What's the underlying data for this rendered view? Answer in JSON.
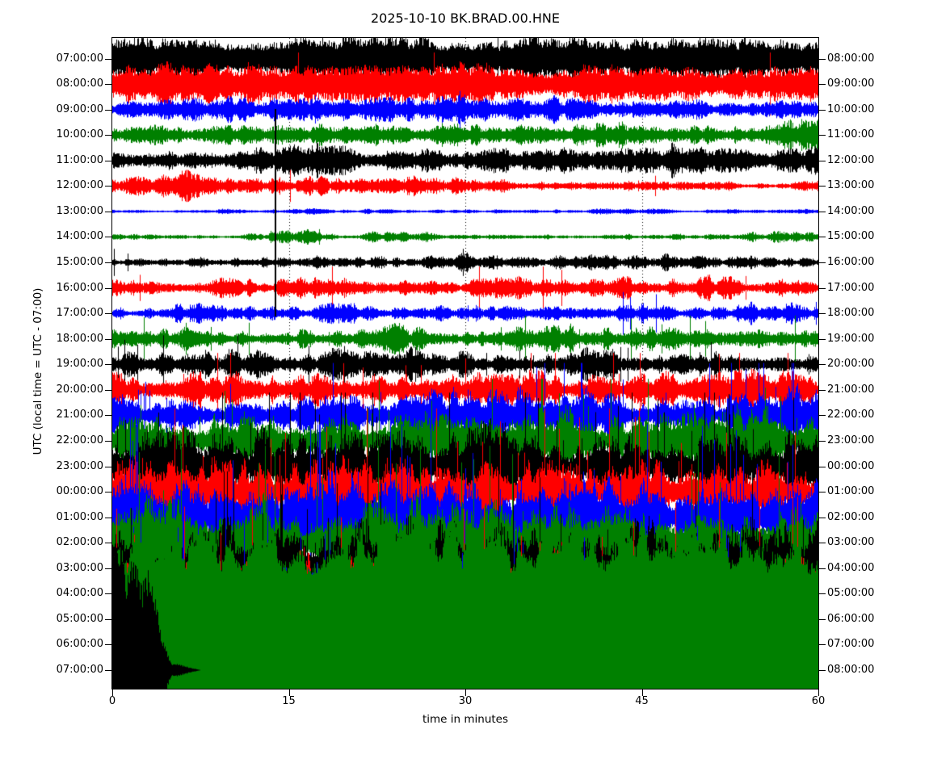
{
  "figure": {
    "title": "2025-10-10 BK.BRAD.00.HNE",
    "xlabel": "time in minutes",
    "ylabel": "UTC (local time = UTC - 07:00)"
  },
  "chart_data": {
    "type": "line",
    "subtype": "seismogram-dayplot",
    "title": "2025-10-10 BK.BRAD.00.HNE",
    "station": "BK.BRAD.00.HNE",
    "date": "2025-10-10",
    "xlabel": "time in minutes",
    "ylabel": "UTC (local time = UTC - 07:00)",
    "x_axis": {
      "range_minutes": [
        0,
        60
      ],
      "ticks": [
        0,
        15,
        30,
        45,
        60
      ]
    },
    "grid": {
      "vertical_dotted_at_minutes": [
        15,
        30,
        45
      ],
      "color": "#000000"
    },
    "trace_color_cycle": [
      "#000000",
      "#ff0000",
      "#0000ff",
      "#008000"
    ],
    "annotations": [
      {
        "type": "vertical-glitch-line",
        "minute": 13.9,
        "color": "#000000"
      }
    ],
    "rows": [
      {
        "left": "07:00:00",
        "right": "08:00:00",
        "color": "#000000",
        "amp": 28,
        "floor": 0.55,
        "flat": 0.6,
        "cap": 1.5,
        "spikes": 0.003,
        "seed": 11,
        "env": [
          1,
          1.05,
          0.95,
          1,
          1.1,
          1,
          0.95,
          1.05,
          1,
          0.9,
          1,
          1.05,
          1
        ]
      },
      {
        "left": "08:00:00",
        "right": "09:00:00",
        "color": "#ff0000",
        "amp": 26,
        "floor": 0.5,
        "flat": 0.6,
        "cap": 1.5,
        "spikes": 0.004,
        "seed": 23,
        "env": [
          1,
          1.1,
          0.9,
          1,
          0.95,
          1.05,
          1,
          0.9,
          1,
          1.05,
          0.95,
          1,
          1
        ]
      },
      {
        "left": "09:00:00",
        "right": "10:00:00",
        "color": "#0000ff",
        "amp": 16,
        "floor": 0.45,
        "flat": 0.8,
        "seed": 35,
        "env": [
          0.7,
          0.9,
          1.15,
          0.95,
          0.85,
          1.1,
          1.2,
          1,
          0.9,
          1,
          0.9,
          0.8,
          0.9
        ]
      },
      {
        "left": "10:00:00",
        "right": "11:00:00",
        "color": "#008000",
        "amp": 16,
        "floor": 0.45,
        "flat": 0.8,
        "seed": 47,
        "env": [
          0.9,
          1,
          0.8,
          1,
          1.15,
          0.9,
          1,
          1,
          0.9,
          1,
          1,
          0.9,
          1.25
        ]
      },
      {
        "left": "11:00:00",
        "right": "12:00:00",
        "color": "#000000",
        "amp": 17,
        "floor": 0.45,
        "flat": 0.8,
        "seed": 59,
        "env": [
          0.7,
          0.8,
          0.9,
          1.2,
          1.05,
          0.9,
          1,
          0.95,
          1.25,
          1.1,
          1.35,
          1,
          1.45
        ]
      },
      {
        "left": "12:00:00",
        "right": "13:00:00",
        "color": "#ff0000",
        "amp": 11,
        "floor": 0.45,
        "cap": 1.8,
        "spikes": 0.002,
        "seed": 71,
        "env": [
          1.4,
          1.6,
          1.3,
          1.2,
          1.1,
          1,
          0.9,
          0.7,
          0.6,
          0.55,
          0.5,
          0.5,
          0.5
        ]
      },
      {
        "left": "13:00:00",
        "right": "14:00:00",
        "color": "#0000ff",
        "amp": 3,
        "floor": 0.5,
        "seed": 83,
        "env": [
          1,
          1,
          1,
          1.3,
          1,
          1,
          1,
          1,
          1,
          1,
          1.2,
          1,
          1
        ]
      },
      {
        "left": "14:00:00",
        "right": "15:00:00",
        "color": "#008000",
        "amp": 4,
        "floor": 0.45,
        "spikes": 0.003,
        "seed": 95,
        "env": [
          0.8,
          0.8,
          0.8,
          2.6,
          1.1,
          2,
          1.2,
          0.9,
          0.9,
          0.9,
          0.9,
          2.4,
          1.3
        ]
      },
      {
        "left": "15:00:00",
        "right": "16:00:00",
        "color": "#000000",
        "amp": 7,
        "floor": 0.45,
        "spikes": 0.003,
        "seed": 107,
        "env": [
          0.8,
          0.8,
          0.9,
          1,
          1.3,
          1,
          1.5,
          1,
          1.3,
          1.6,
          1.4,
          1.2,
          1
        ]
      },
      {
        "left": "16:00:00",
        "right": "17:00:00",
        "color": "#ff0000",
        "amp": 11,
        "floor": 0.45,
        "spikes": 0.005,
        "seed": 119,
        "env": [
          1.1,
          1,
          1.2,
          1.3,
          1,
          1.1,
          1.2,
          1,
          1.3,
          1.2,
          1.5,
          1.1,
          1
        ]
      },
      {
        "left": "17:00:00",
        "right": "18:00:00",
        "color": "#0000ff",
        "amp": 11,
        "floor": 0.45,
        "spikes": 0.005,
        "seed": 131,
        "env": [
          1,
          1.2,
          0.9,
          1,
          1.1,
          1,
          0.9,
          1,
          1.2,
          1.1,
          1.4,
          1.2,
          1
        ]
      },
      {
        "left": "18:00:00",
        "right": "19:00:00",
        "color": "#008000",
        "amp": 12,
        "floor": 0.45,
        "spikes": 0.01,
        "seed": 143,
        "env": [
          1,
          1.1,
          1.3,
          1,
          1.2,
          1.5,
          1,
          1.1,
          1.3,
          1.2,
          1.6,
          1.3,
          1.5
        ]
      },
      {
        "left": "19:00:00",
        "right": "20:00:00",
        "color": "#000000",
        "amp": 15,
        "floor": 0.45,
        "spikes": 0.012,
        "seed": 155,
        "env": [
          0.9,
          1,
          1.2,
          1.4,
          1.1,
          1.3,
          1.2,
          1,
          1.4,
          1.2,
          1.3,
          1.1,
          1
        ]
      },
      {
        "left": "20:00:00",
        "right": "21:00:00",
        "color": "#ff0000",
        "amp": 19,
        "floor": 0.45,
        "spikes": 0.022,
        "seed": 167,
        "env": [
          0.9,
          1,
          1.1,
          1,
          1.2,
          1.4,
          1.2,
          1.3,
          1.4,
          1.3,
          1.5,
          1.4,
          1.3
        ]
      },
      {
        "left": "21:00:00",
        "right": "22:00:00",
        "color": "#0000ff",
        "amp": 27,
        "floor": 0.45,
        "spikes": 0.03,
        "seed": 179,
        "env": [
          1,
          1.1,
          0.9,
          1.2,
          1,
          1.3,
          1.1,
          1.2,
          1.3,
          1.1,
          1.2,
          1.3,
          1.2
        ]
      },
      {
        "left": "22:00:00",
        "right": "23:00:00",
        "color": "#008000",
        "amp": 32,
        "floor": 0.45,
        "spikes": 0.03,
        "seed": 191,
        "env": [
          1.1,
          1,
          1.2,
          1,
          1.3,
          1.1,
          1.2,
          1,
          1.2,
          1.3,
          1.1,
          1.2,
          1.1
        ]
      },
      {
        "left": "23:00:00",
        "right": "00:00:00",
        "color": "#000000",
        "amp": 38,
        "floor": 0.45,
        "spikes": 0.032,
        "seed": 203,
        "env": [
          1,
          1.1,
          1,
          1.2,
          1.1,
          1,
          1.2,
          1.3,
          1.1,
          1,
          1.2,
          1.1,
          1
        ]
      },
      {
        "left": "00:00:00",
        "right": "01:00:00",
        "color": "#ff0000",
        "amp": 43,
        "floor": 0.45,
        "spikes": 0.035,
        "seed": 215,
        "env": [
          1,
          1,
          1.2,
          1.1,
          1,
          1.3,
          1.1,
          1.2,
          1,
          1.2,
          1.1,
          1,
          1.1
        ]
      },
      {
        "left": "01:00:00",
        "right": "02:00:00",
        "color": "#0000ff",
        "amp": 48,
        "floor": 0.5,
        "spikes": 0.035,
        "seed": 227,
        "env": [
          1.1,
          1,
          1.1,
          1.2,
          1,
          1.1,
          1.2,
          1.1,
          1.3,
          1.2,
          1.1,
          1.2,
          1.1
        ]
      },
      {
        "left": "02:00:00",
        "right": "03:00:00",
        "color": "#008000",
        "amp": 50,
        "floor": 0.5,
        "spikes": 0.03,
        "seed": 239,
        "env": [
          1,
          1.1,
          1,
          1.1,
          1.2,
          1,
          1.1,
          1,
          1.1,
          1.2,
          1.1,
          1,
          1.1
        ]
      },
      {
        "left": "03:00:00",
        "right": "04:00:00",
        "color": "#000000",
        "amp": 50,
        "floor": 0.5,
        "spikes": 0.03,
        "seed": 251,
        "env": [
          1.1,
          1,
          1.2,
          1,
          1.1,
          1.2,
          1,
          1.1,
          1,
          1.1,
          1,
          1.1,
          1
        ]
      },
      {
        "left": "04:00:00",
        "right": "05:00:00",
        "color": "#ff0000",
        "amp": 50,
        "floor": 0.5,
        "spikes": 0.03,
        "seed": 263,
        "env": [
          1,
          1.1,
          1,
          1.2,
          1.1,
          1,
          1.1,
          1.2,
          1,
          1.1,
          1.2,
          1,
          1.1
        ]
      },
      {
        "left": "05:00:00",
        "right": "06:00:00",
        "color": "#0000ff",
        "amp": 70,
        "floor": 0.55,
        "spikes": 0.04,
        "seed": 275,
        "env": [
          1,
          1.05,
          1.1,
          1,
          1.05,
          1.1,
          1.05,
          1,
          1.1,
          1.05,
          1,
          1.05,
          1
        ]
      },
      {
        "left": "06:00:00",
        "right": "07:00:00",
        "color": "#008000",
        "amp": 150,
        "floor": 0.85,
        "flat": 0.5,
        "seed": 287,
        "env": [
          0.95,
          1,
          1.05,
          0.95,
          1,
          1.05,
          1,
          0.95,
          1,
          1.05,
          1,
          1,
          1
        ]
      },
      {
        "left": "07:00:00",
        "right": "08:00:00",
        "color": "#000000",
        "amp": 190,
        "floor": 0.7,
        "flat": 0.5,
        "minh": 0,
        "seed": 299,
        "env": [
          1,
          0.85,
          0.06,
          0,
          0,
          0,
          0,
          0,
          0,
          0,
          0,
          0,
          0,
          0,
          0,
          0,
          0,
          0,
          0,
          0,
          0,
          0,
          0,
          0,
          0
        ]
      }
    ]
  }
}
